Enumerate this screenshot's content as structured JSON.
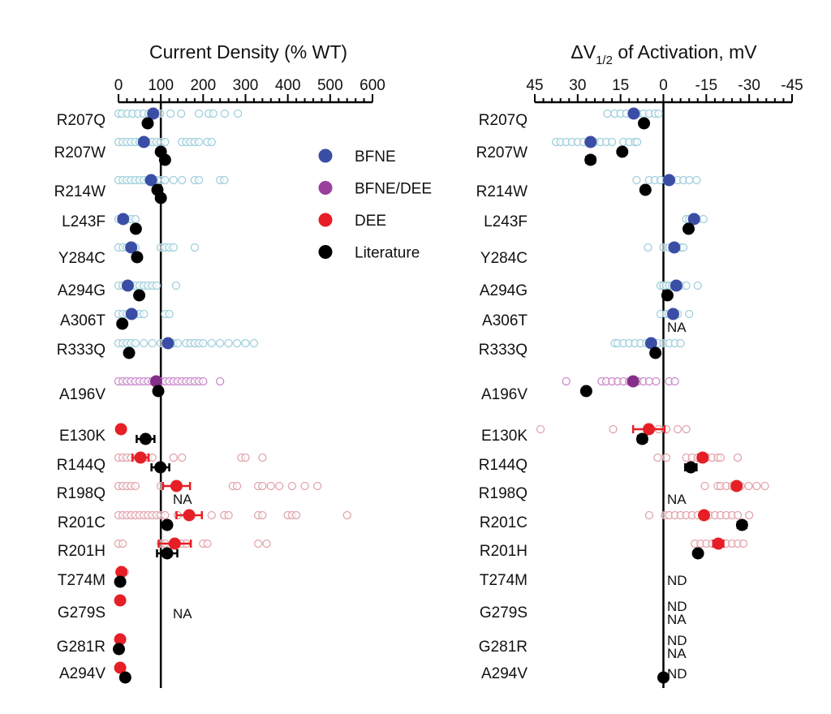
{
  "chart_data": [
    {
      "type": "scatter",
      "title": "Current Density (% WT)",
      "xlim": [
        0,
        600
      ],
      "xticks": [
        0,
        100,
        200,
        300,
        400,
        500,
        600
      ],
      "reference_line": 100,
      "rows": [
        {
          "variant": "R207Q",
          "group": "BFNE",
          "mean": 82,
          "points": [
            0,
            8,
            21,
            33,
            46,
            59,
            71,
            98,
            123,
            148,
            190,
            213,
            224,
            251,
            282
          ],
          "lit": [
            {
              "v": 69
            }
          ]
        },
        {
          "variant": "R207W",
          "group": "BFNE",
          "mean": 60,
          "points": [
            0,
            10,
            20,
            30,
            40,
            50,
            70,
            80,
            90,
            100,
            110,
            150,
            160,
            170,
            180,
            190,
            210,
            220
          ],
          "lit": [
            {
              "v": 100
            },
            {
              "v": 110
            }
          ]
        },
        {
          "variant": "R214W",
          "group": "BFNE",
          "mean": 77,
          "points": [
            0,
            10,
            20,
            30,
            40,
            50,
            60,
            70,
            90,
            100,
            110,
            130,
            150,
            180,
            190,
            240,
            250
          ],
          "lit": [
            {
              "v": 92
            },
            {
              "v": 100
            }
          ]
        },
        {
          "variant": "L243F",
          "group": "BFNE",
          "mean": 11,
          "points": [
            0,
            10,
            20,
            30,
            40
          ],
          "lit": [
            {
              "v": 41
            }
          ]
        },
        {
          "variant": "Y284C",
          "group": "BFNE",
          "mean": 30,
          "points": [
            0,
            10,
            20,
            30,
            40,
            100,
            110,
            120,
            130,
            180
          ],
          "lit": [
            {
              "v": 44
            }
          ]
        },
        {
          "variant": "A294G",
          "group": "BFNE",
          "mean": 22,
          "points": [
            0,
            10,
            20,
            30,
            40,
            50,
            60,
            70,
            80,
            90,
            136
          ],
          "lit": [
            {
              "v": 49
            }
          ]
        },
        {
          "variant": "A306T",
          "group": "BFNE",
          "mean": 31,
          "points": [
            0,
            10,
            20,
            30,
            40,
            50,
            60,
            110,
            120
          ],
          "lit": [
            {
              "v": 9
            }
          ]
        },
        {
          "variant": "R333Q",
          "group": "BFNE",
          "mean": 117,
          "points": [
            0,
            10,
            20,
            30,
            40,
            60,
            80,
            100,
            130,
            140,
            160,
            170,
            180,
            190,
            200,
            220,
            240,
            260,
            280,
            300,
            320
          ],
          "lit": [
            {
              "v": 25
            }
          ]
        },
        {
          "variant": "A196V",
          "group": "BFNE/DEE",
          "mean": 89,
          "points": [
            0,
            10,
            20,
            30,
            40,
            50,
            60,
            70,
            80,
            100,
            110,
            120,
            130,
            140,
            150,
            160,
            170,
            180,
            190,
            200,
            240
          ],
          "lit": [
            {
              "v": 94
            }
          ]
        },
        {
          "variant": "E130K",
          "group": "DEE",
          "mean": 6,
          "points": [],
          "lit": [
            {
              "v": 64,
              "err": 21
            }
          ]
        },
        {
          "variant": "R144Q",
          "group": "DEE",
          "mean": 52,
          "err": 19,
          "points": [
            0,
            10,
            20,
            30,
            60,
            70,
            80,
            130,
            150,
            290,
            300,
            340
          ],
          "lit": [
            {
              "v": 99,
              "err": 21
            }
          ]
        },
        {
          "variant": "R198Q",
          "group": "DEE",
          "mean": 137,
          "err": 32,
          "points": [
            0,
            10,
            20,
            30,
            40,
            100,
            270,
            280,
            330,
            340,
            360,
            380,
            410,
            440,
            470
          ],
          "lit": [],
          "note": "NA"
        },
        {
          "variant": "R201C",
          "group": "DEE",
          "mean": 167,
          "err": 30,
          "points": [
            0,
            10,
            20,
            30,
            40,
            50,
            60,
            70,
            80,
            90,
            100,
            110,
            140,
            220,
            250,
            260,
            330,
            340,
            400,
            410,
            420,
            540
          ],
          "lit": [
            {
              "v": 115
            }
          ]
        },
        {
          "variant": "R201H",
          "group": "DEE",
          "mean": 133,
          "err": 38,
          "points": [
            0,
            10,
            100,
            110,
            150,
            160,
            200,
            210,
            330,
            350
          ],
          "lit": [
            {
              "v": 115,
              "err": 24
            }
          ]
        },
        {
          "variant": "T274M",
          "group": "DEE",
          "mean": 7,
          "points": [
            10,
            15
          ],
          "lit": [
            {
              "v": 4
            }
          ]
        },
        {
          "variant": "G279S",
          "group": "DEE",
          "mean": 4,
          "points": [],
          "lit": [],
          "note": "NA"
        },
        {
          "variant": "G281R",
          "group": "DEE",
          "mean": 4,
          "points": [],
          "lit": [
            {
              "v": 1
            }
          ]
        },
        {
          "variant": "A294V",
          "group": "DEE",
          "mean": 4,
          "points": [],
          "lit": [
            {
              "v": 16
            }
          ]
        }
      ]
    },
    {
      "type": "scatter",
      "title_main": "ΔV",
      "title_sub": "1/2",
      "title_rest": " of Activation, mV",
      "xlim": [
        45,
        -45
      ],
      "xticks": [
        45,
        30,
        15,
        0,
        -15,
        -30,
        -45
      ],
      "reference_line": 0,
      "rows": [
        {
          "variant": "R207Q",
          "group": "BFNE",
          "mean": 10.4,
          "points": [
            19.6,
            17,
            15,
            13,
            11,
            9,
            7,
            5,
            3,
            1.7
          ],
          "lit": [
            {
              "v": 6.8
            }
          ]
        },
        {
          "variant": "R207W",
          "group": "BFNE",
          "mean": 25.5,
          "points": [
            37.6,
            36,
            34,
            32,
            30,
            28,
            26,
            24,
            22,
            20,
            18,
            14,
            12,
            10,
            9.2
          ],
          "lit": [
            {
              "v": 14.4
            },
            {
              "v": 25.5,
              "err": 1.5
            }
          ]
        },
        {
          "variant": "R214W",
          "group": "BFNE",
          "mean": -2,
          "points": [
            9.4,
            5,
            3,
            1,
            -1,
            -3,
            -5,
            -7,
            -9,
            -11.6
          ],
          "lit": [
            {
              "v": 6.3
            }
          ]
        },
        {
          "variant": "L243F",
          "group": "BFNE",
          "mean": -10.7,
          "points": [
            -8,
            -9,
            -10,
            -12,
            -14
          ],
          "lit": [
            {
              "v": -8.8
            }
          ]
        },
        {
          "variant": "Y284C",
          "group": "BFNE",
          "mean": -3.8,
          "points": [
            5.4,
            0,
            -2,
            -4,
            -6,
            -7
          ],
          "lit": []
        },
        {
          "variant": "A294G",
          "group": "BFNE",
          "mean": -4.5,
          "points": [
            1,
            0,
            -1,
            -2,
            -3,
            -5,
            -6,
            -8,
            -12
          ],
          "lit": [
            {
              "v": -1.4
            }
          ]
        },
        {
          "variant": "A306T",
          "group": "BFNE",
          "mean": -3.4,
          "points": [
            1,
            -1,
            -2,
            -4,
            -5,
            -9
          ],
          "lit": [],
          "note": "NA"
        },
        {
          "variant": "R333Q",
          "group": "BFNE",
          "mean": 4.3,
          "points": [
            17,
            16,
            14,
            12,
            10,
            8,
            6,
            2,
            0,
            -2,
            -4,
            -6
          ],
          "lit": [
            {
              "v": 2.8
            }
          ]
        },
        {
          "variant": "A196V",
          "group": "BFNE/DEE",
          "mean": 10.6,
          "points": [
            34,
            21.6,
            20,
            18,
            16,
            14,
            12,
            9,
            7,
            5,
            2.6,
            -2,
            -4
          ],
          "lit": [
            {
              "v": 27
            }
          ]
        },
        {
          "variant": "E130K",
          "group": "DEE",
          "mean": 5.1,
          "err": 5.5,
          "points": [
            43,
            17.6,
            1.7,
            -1,
            -5,
            -8
          ],
          "lit": [
            {
              "v": 7.4,
              "err": 1.5
            }
          ]
        },
        {
          "variant": "R144Q",
          "group": "DEE",
          "mean": -13.7,
          "err": 1.5,
          "points": [
            2,
            -1,
            -8,
            -10,
            -12,
            -15,
            -17,
            -19,
            -20,
            -26
          ],
          "lit": [
            {
              "v": -9.6,
              "err": 2
            }
          ]
        },
        {
          "variant": "R198Q",
          "group": "DEE",
          "mean": -25.6,
          "points": [
            -14.5,
            -19,
            -20,
            -22,
            -24,
            -27,
            -29.8,
            -32.6,
            -35.5
          ],
          "lit": [],
          "note": "NA"
        },
        {
          "variant": "R201C",
          "group": "DEE",
          "mean": -14.2,
          "points": [
            5,
            -0.5,
            -2,
            -4,
            -6,
            -8,
            -10,
            -12,
            -16,
            -18,
            -20,
            -22,
            -24,
            -26,
            -30
          ],
          "lit": [
            {
              "v": -27.5,
              "err": 1.5
            }
          ]
        },
        {
          "variant": "R201H",
          "group": "DEE",
          "mean": -19.2,
          "err": 1.8,
          "points": [
            -11,
            -13,
            -15,
            -17,
            -22,
            -24,
            -26,
            -28
          ],
          "lit": [
            {
              "v": -12.1
            }
          ]
        },
        {
          "variant": "T274M",
          "group": "DEE",
          "points": [],
          "lit": [],
          "note": "ND"
        },
        {
          "variant": "G279S",
          "group": "DEE",
          "points": [],
          "lit": [],
          "note": "ND\nNA"
        },
        {
          "variant": "G281R",
          "group": "DEE",
          "points": [],
          "lit": [],
          "note": "ND\nNA"
        },
        {
          "variant": "A294V",
          "group": "DEE",
          "points": [],
          "lit": [
            {
              "v": 0
            }
          ],
          "note": "ND"
        }
      ]
    }
  ],
  "legend": [
    {
      "label": "BFNE",
      "color": "#3b4ea6"
    },
    {
      "label": "BFNE/DEE",
      "color": "#9a3f9c"
    },
    {
      "label": "DEE",
      "color": "#e61f26"
    },
    {
      "label": "Literature",
      "color": "#000000"
    }
  ],
  "colors": {
    "BFNE": {
      "mean": "#3b4ea6",
      "open": "#9fcfdc"
    },
    "BFNE/DEE": {
      "mean": "#84308a",
      "open": "#c98ac9"
    },
    "DEE": {
      "mean": "#e61f26",
      "open": "#e2a4ab"
    },
    "lit": "#000000"
  }
}
